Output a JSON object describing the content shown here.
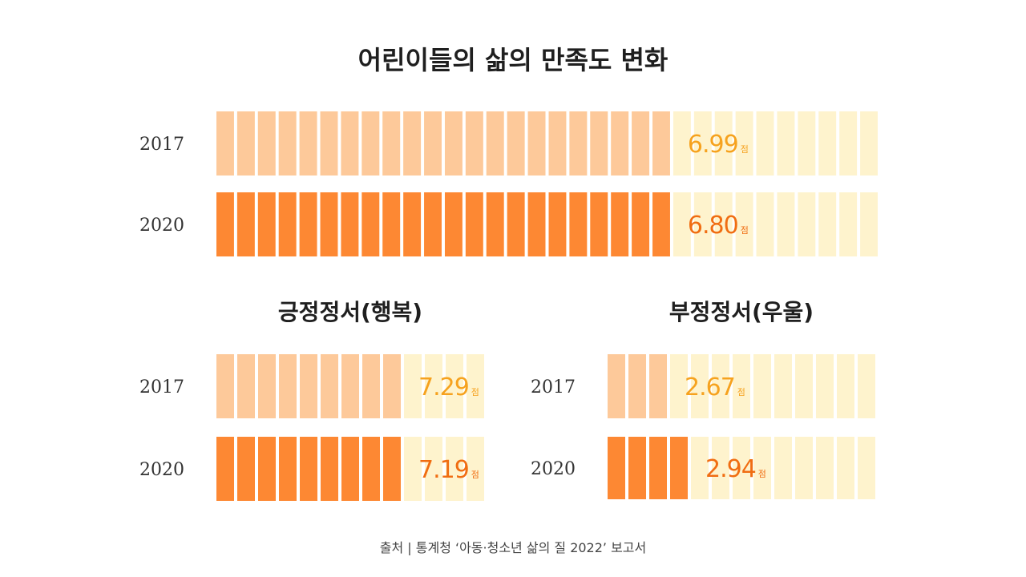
{
  "title": "어린이들의 삶의 만족도 변화",
  "source": "출처  |  통계청 ‘아동·청소년 삶의 질 2022’ 보고서",
  "colors": {
    "track": "#fef3cd",
    "fill_2017": "#fdc99a",
    "fill_2020": "#fd8833",
    "value_2017": "#f6a21e",
    "value_2020": "#f06d12"
  },
  "chart_data": [
    {
      "type": "bar",
      "title": "",
      "unit": "점",
      "scale_max": 10,
      "categories": [
        "2017",
        "2020"
      ],
      "values": [
        6.99,
        6.8
      ],
      "value_labels": [
        "6.99",
        "6.80"
      ]
    },
    {
      "type": "bar",
      "title": "긍정정서(행복)",
      "unit": "점",
      "scale_max": 10,
      "categories": [
        "2017",
        "2020"
      ],
      "values": [
        7.29,
        7.19
      ],
      "value_labels": [
        "7.29",
        "7.19"
      ]
    },
    {
      "type": "bar",
      "title": "부정정서(우울)",
      "unit": "점",
      "scale_max": 10,
      "categories": [
        "2017",
        "2020"
      ],
      "values": [
        2.67,
        2.94
      ],
      "value_labels": [
        "2.67",
        "2.94"
      ]
    }
  ]
}
